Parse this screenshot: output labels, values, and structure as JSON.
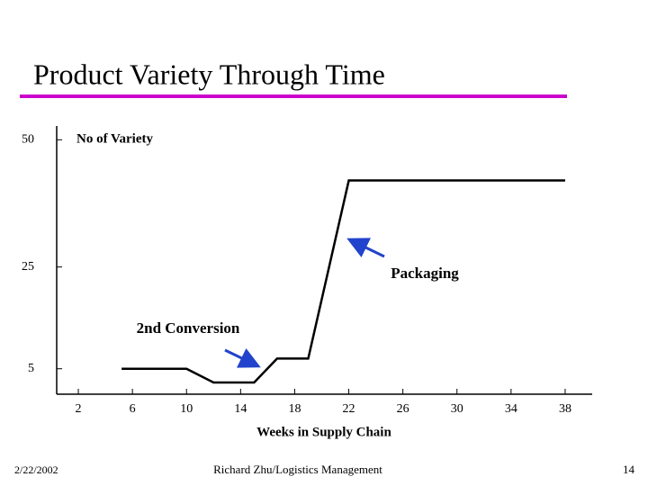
{
  "chart_data": {
    "type": "line",
    "title": "Product Variety Through Time",
    "y_label": "No of Variety",
    "x_label": "Weeks in Supply Chain",
    "xlim": [
      0.4,
      40
    ],
    "xticks": [
      2,
      6,
      10,
      14,
      18,
      22,
      26,
      30,
      34,
      38
    ],
    "ylim": [
      0,
      52
    ],
    "yticks": [
      5,
      25,
      50
    ],
    "annotations": [
      "Packaging",
      "2nd Conversion"
    ],
    "series": [
      {
        "color": "#000000",
        "x": [
          5.2,
          10,
          12,
          15,
          16.7,
          19,
          22,
          38
        ],
        "values": [
          5,
          5,
          2.3,
          2.3,
          7,
          7,
          42,
          42
        ]
      }
    ]
  },
  "footer": {
    "date": "2/22/2002",
    "author": "Richard Zhu/Logistics Management",
    "page": "14"
  }
}
